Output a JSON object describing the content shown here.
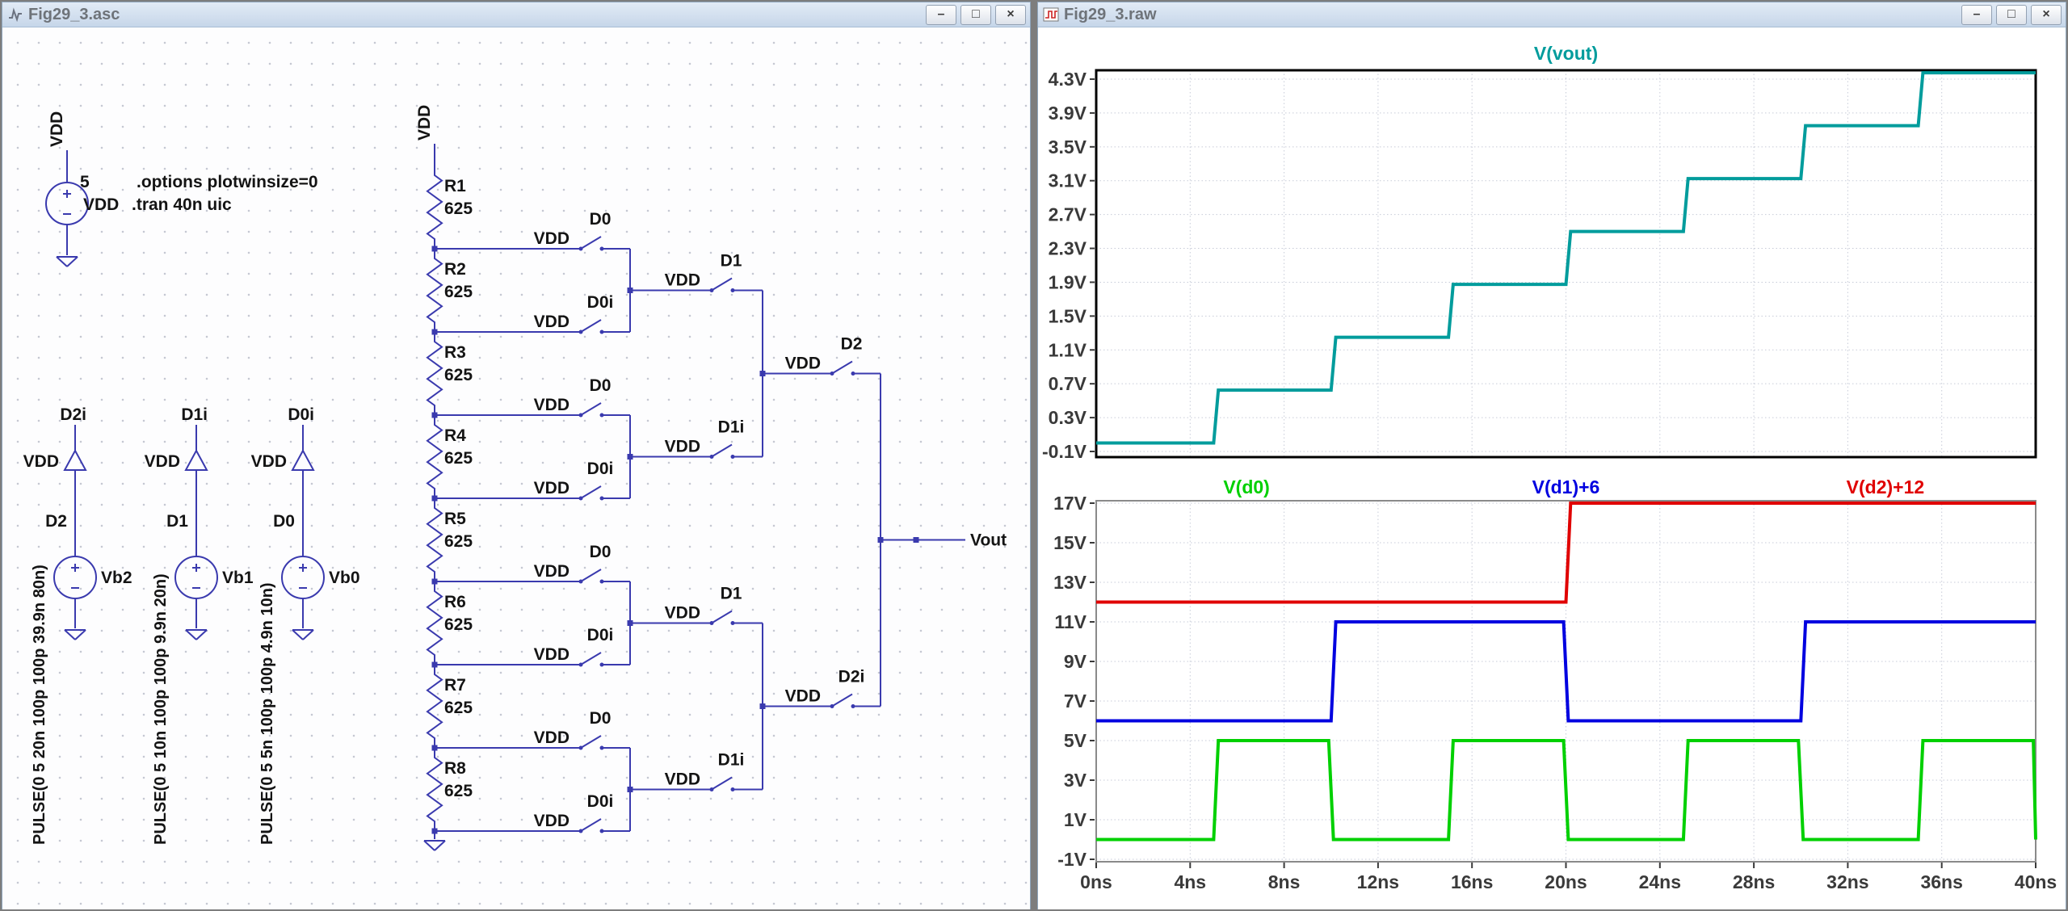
{
  "window_controls": {
    "minimize": "–",
    "restore": "□",
    "close": "×"
  },
  "schematic_window": {
    "title": "Fig29_3.asc",
    "directives": [
      ".options plotwinsize=0",
      ".tran 40n uic"
    ],
    "power_source": {
      "name": "VDD",
      "value": "5",
      "net": "VDD"
    },
    "pulse_sources": [
      {
        "name": "Vb2",
        "net": "D2",
        "inv_net": "D2i",
        "gate": "VDD",
        "value": "PULSE(0 5 20n 100p 100p 39.9n 80n)"
      },
      {
        "name": "Vb1",
        "net": "D1",
        "inv_net": "D1i",
        "gate": "VDD",
        "value": "PULSE(0 5 10n 100p 100p 9.9n 20n)"
      },
      {
        "name": "Vb0",
        "net": "D0",
        "inv_net": "D0i",
        "gate": "VDD",
        "value": "PULSE(0 5 5n 100p 100p 4.9n 10n)"
      }
    ],
    "ladder": {
      "net": "VDD",
      "resistors": [
        {
          "name": "R1",
          "value": "625"
        },
        {
          "name": "R2",
          "value": "625"
        },
        {
          "name": "R3",
          "value": "625"
        },
        {
          "name": "R4",
          "value": "625"
        },
        {
          "name": "R5",
          "value": "625"
        },
        {
          "name": "R6",
          "value": "625"
        },
        {
          "name": "R7",
          "value": "625"
        },
        {
          "name": "R8",
          "value": "625"
        }
      ]
    },
    "switch_columns": [
      {
        "gate_label": "VDD",
        "controls": [
          "D0",
          "D0i",
          "D0",
          "D0i",
          "D0",
          "D0i",
          "D0",
          "D0i"
        ]
      },
      {
        "gate_label": "VDD",
        "controls": [
          "D1",
          "D1i",
          "D1",
          "D1i"
        ]
      },
      {
        "gate_label": "VDD",
        "controls": [
          "D2",
          "D2i"
        ]
      }
    ],
    "output_label": "Vout"
  },
  "waveform_window": {
    "title": "Fig29_3.raw"
  },
  "chart_data": [
    {
      "type": "line",
      "title": "V(vout)",
      "title_color": "#009c9c",
      "ylim": [
        -0.1,
        4.3
      ],
      "yticks": [
        "4.3V",
        "3.9V",
        "3.5V",
        "3.1V",
        "2.7V",
        "2.3V",
        "1.9V",
        "1.5V",
        "1.1V",
        "0.7V",
        "0.3V",
        "-0.1V"
      ],
      "xlim": [
        0,
        40
      ],
      "xticks": [
        "0ns",
        "4ns",
        "8ns",
        "12ns",
        "16ns",
        "20ns",
        "24ns",
        "28ns",
        "32ns",
        "36ns",
        "40ns"
      ],
      "grid": true,
      "series": [
        {
          "name": "V(vout)",
          "color": "#009c9c",
          "points": [
            [
              0,
              0
            ],
            [
              5,
              0
            ],
            [
              5.2,
              0.625
            ],
            [
              10,
              0.625
            ],
            [
              10.2,
              1.25
            ],
            [
              15,
              1.25
            ],
            [
              15.2,
              1.875
            ],
            [
              20,
              1.875
            ],
            [
              20.2,
              2.5
            ],
            [
              25,
              2.5
            ],
            [
              25.2,
              3.125
            ],
            [
              30,
              3.125
            ],
            [
              30.2,
              3.75
            ],
            [
              35,
              3.75
            ],
            [
              35.2,
              4.375
            ],
            [
              40,
              4.375
            ]
          ]
        }
      ]
    },
    {
      "type": "line",
      "titles": [
        {
          "label": "V(d0)",
          "color": "#00d000"
        },
        {
          "label": "V(d1)+6",
          "color": "#0000e0"
        },
        {
          "label": "V(d2)+12",
          "color": "#e00000"
        }
      ],
      "ylim": [
        -1,
        17
      ],
      "yticks": [
        "17V",
        "15V",
        "13V",
        "11V",
        "9V",
        "7V",
        "5V",
        "3V",
        "1V",
        "-1V"
      ],
      "xlim": [
        0,
        40
      ],
      "xticks": [
        "0ns",
        "4ns",
        "8ns",
        "12ns",
        "16ns",
        "20ns",
        "24ns",
        "28ns",
        "32ns",
        "36ns",
        "40ns"
      ],
      "grid": true,
      "series": [
        {
          "name": "V(d0)",
          "color": "#00d000",
          "points": [
            [
              0,
              0
            ],
            [
              5,
              0
            ],
            [
              5.2,
              5
            ],
            [
              9.9,
              5
            ],
            [
              10.1,
              0
            ],
            [
              15,
              0
            ],
            [
              15.2,
              5
            ],
            [
              19.9,
              5
            ],
            [
              20.1,
              0
            ],
            [
              25,
              0
            ],
            [
              25.2,
              5
            ],
            [
              29.9,
              5
            ],
            [
              30.1,
              0
            ],
            [
              35,
              0
            ],
            [
              35.2,
              5
            ],
            [
              39.9,
              5
            ],
            [
              40,
              0
            ]
          ]
        },
        {
          "name": "V(d1)+6",
          "color": "#0000e0",
          "points": [
            [
              0,
              6
            ],
            [
              10,
              6
            ],
            [
              10.2,
              11
            ],
            [
              19.9,
              11
            ],
            [
              20.1,
              6
            ],
            [
              30,
              6
            ],
            [
              30.2,
              11
            ],
            [
              40,
              11
            ]
          ]
        },
        {
          "name": "V(d2)+12",
          "color": "#e00000",
          "points": [
            [
              0,
              12
            ],
            [
              20,
              12
            ],
            [
              20.2,
              17
            ],
            [
              40,
              17
            ]
          ]
        }
      ]
    }
  ]
}
